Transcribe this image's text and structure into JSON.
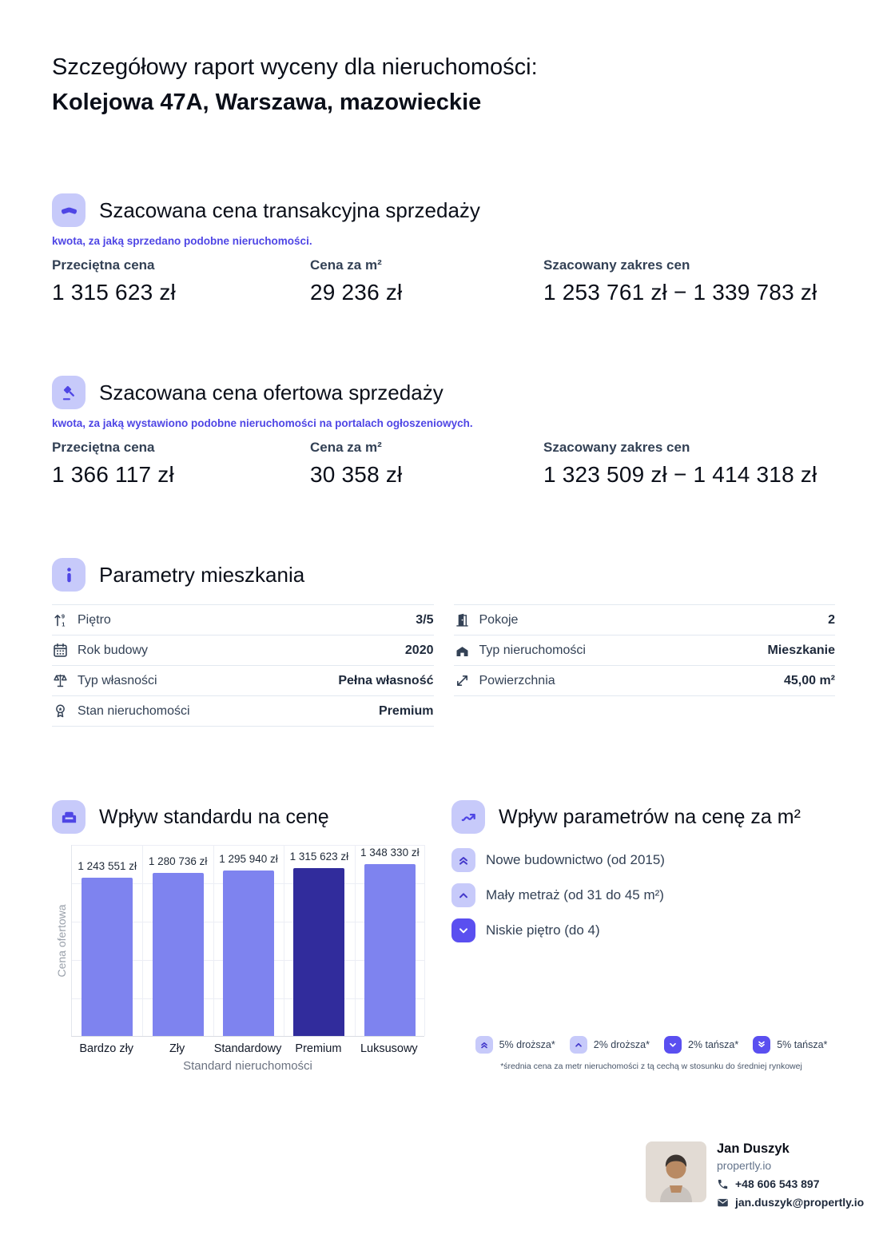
{
  "colors": {
    "accent": "#4f46e5",
    "icon_background": "#c7cafa",
    "bar_default": "#7e83ef",
    "bar_highlight": "#312c9c",
    "badge_light": "#c7cafa",
    "badge_solid": "#5a4ff0",
    "label_slate": "#334155",
    "border": "#e2e8f0"
  },
  "header": {
    "line1": "Szczegółowy raport wyceny dla nieruchomości:",
    "line2": "Kolejowa 47A, Warszawa, mazowieckie"
  },
  "transaction": {
    "title": "Szacowana cena transakcyjna sprzedaży",
    "subtitle": "kwota, za jaką sprzedano podobne nieruchomości.",
    "stats": [
      {
        "label": "Przeciętna cena",
        "value": "1 315 623 zł"
      },
      {
        "label": "Cena za m²",
        "value": "29 236 zł"
      },
      {
        "label": "Szacowany zakres cen",
        "value": "1 253 761 zł − 1 339 783 zł"
      }
    ]
  },
  "offer": {
    "title": "Szacowana cena ofertowa sprzedaży",
    "subtitle": "kwota, za jaką wystawiono podobne nieruchomości na portalach ogłoszeniowych.",
    "stats": [
      {
        "label": "Przeciętna cena",
        "value": "1 366 117 zł"
      },
      {
        "label": "Cena za m²",
        "value": "30 358 zł"
      },
      {
        "label": "Szacowany zakres cen",
        "value": "1 323 509 zł − 1 414 318 zł"
      }
    ]
  },
  "parameters": {
    "title": "Parametry mieszkania",
    "left": [
      {
        "icon": "floor-icon",
        "label": "Piętro",
        "value": "3/5"
      },
      {
        "icon": "calendar-icon",
        "label": "Rok budowy",
        "value": "2020"
      },
      {
        "icon": "scales-icon",
        "label": "Typ własności",
        "value": "Pełna własność"
      },
      {
        "icon": "medal-icon",
        "label": "Stan nieruchomości",
        "value": "Premium"
      }
    ],
    "right": [
      {
        "icon": "door-icon",
        "label": "Pokoje",
        "value": "2"
      },
      {
        "icon": "building-icon",
        "label": "Typ nieruchomości",
        "value": "Mieszkanie"
      },
      {
        "icon": "area-icon",
        "label": "Powierzchnia",
        "value": "45,00 m²"
      }
    ]
  },
  "standard_impact": {
    "title": "Wpływ standardu na cenę"
  },
  "chart_data": {
    "type": "bar",
    "title": "Wpływ standardu na cenę",
    "categories": [
      "Bardzo zły",
      "Zły",
      "Standardowy",
      "Premium",
      "Luksusowy"
    ],
    "values": [
      1243551,
      1280736,
      1295940,
      1315623,
      1348330
    ],
    "value_labels": [
      "1 243 551 zł",
      "1 280 736 zł",
      "1 295 940 zł",
      "1 315 623 zł",
      "1 348 330 zł"
    ],
    "highlight_index": 3,
    "highlight_category": "Premium",
    "xlabel": "Standard nieruchomości",
    "ylabel": "Cena ofertowa",
    "ylim": [
      0,
      1505000
    ],
    "grid": true,
    "legend_position": "none",
    "bar_colors": {
      "default": "#7e83ef",
      "highlight": "#312c9c"
    }
  },
  "parameter_impact": {
    "title": "Wpływ parametrów na cenę za m²",
    "items": [
      {
        "badge": "chevrons-up-light",
        "label": "Nowe budownictwo (od 2015)"
      },
      {
        "badge": "chevron-up-light",
        "label": "Mały metraż (od 31 do 45 m²)"
      },
      {
        "badge": "chevron-down-solid",
        "label": "Niskie piętro (do 4)"
      }
    ],
    "legend": [
      {
        "badge": "chevrons-up-light",
        "label": "5% droższa*"
      },
      {
        "badge": "chevron-up-light",
        "label": "2% droższa*"
      },
      {
        "badge": "chevron-down-solid",
        "label": "2% tańsza*"
      },
      {
        "badge": "chevrons-down-solid",
        "label": "5% tańsza*"
      }
    ],
    "footnote": "*średnia cena za metr nieruchomości z tą cechą w stosunku do średniej rynkowej"
  },
  "footer": {
    "name": "Jan Duszyk",
    "company": "propertly.io",
    "phone": "+48 606 543 897",
    "email": "jan.duszyk@propertly.io"
  },
  "icons": {
    "section_icons": [
      "handshake-icon",
      "gavel-icon",
      "info-icon",
      "armchair-icon",
      "trending-up-icon"
    ],
    "row_icons": [
      "floor-icon",
      "calendar-icon",
      "scales-icon",
      "medal-icon",
      "door-icon",
      "building-icon",
      "area-icon"
    ],
    "contact_icons": [
      "phone-icon",
      "mail-icon"
    ],
    "badge_icons": [
      "chevrons-up-icon",
      "chevron-up-icon",
      "chevron-down-icon",
      "chevrons-down-icon"
    ]
  }
}
